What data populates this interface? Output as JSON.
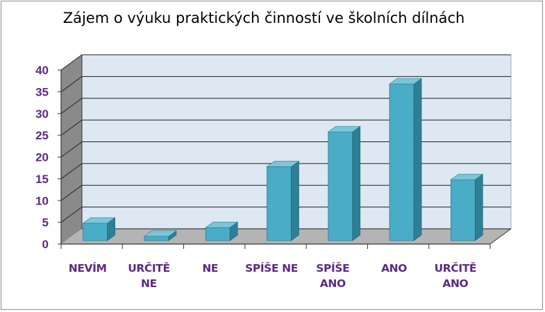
{
  "chart_data": {
    "type": "bar",
    "title": "Zájem o výuku praktických činností ve školních dílnách",
    "categories": [
      "NEVÍM",
      "URČITĚ NE",
      "NE",
      "SPÍŠE NE",
      "SPÍŠE ANO",
      "ANO",
      "URČITĚ ANO"
    ],
    "category_lines": [
      [
        "NEVÍM"
      ],
      [
        "URČITĚ",
        "NE"
      ],
      [
        "NE"
      ],
      [
        "SPÍŠE NE"
      ],
      [
        "SPÍŠE",
        "ANO"
      ],
      [
        "ANO"
      ],
      [
        "URČITĚ",
        "ANO"
      ]
    ],
    "values": [
      4,
      1,
      3,
      17,
      25,
      36,
      14
    ],
    "ylim": [
      0,
      40
    ],
    "yticks": [
      "0",
      "5",
      "10",
      "15",
      "20",
      "25",
      "30",
      "35",
      "40"
    ],
    "grid": true,
    "style": "3d-column",
    "colors": {
      "bar_front": "#4aacc6",
      "bar_side": "#2d7f95",
      "bar_top": "#7cc5d8",
      "wall": "#dde8f2",
      "floor": "#b4b4b4",
      "side_wall": "#8a8a8a",
      "tick_labels": "#5b2a86"
    }
  }
}
